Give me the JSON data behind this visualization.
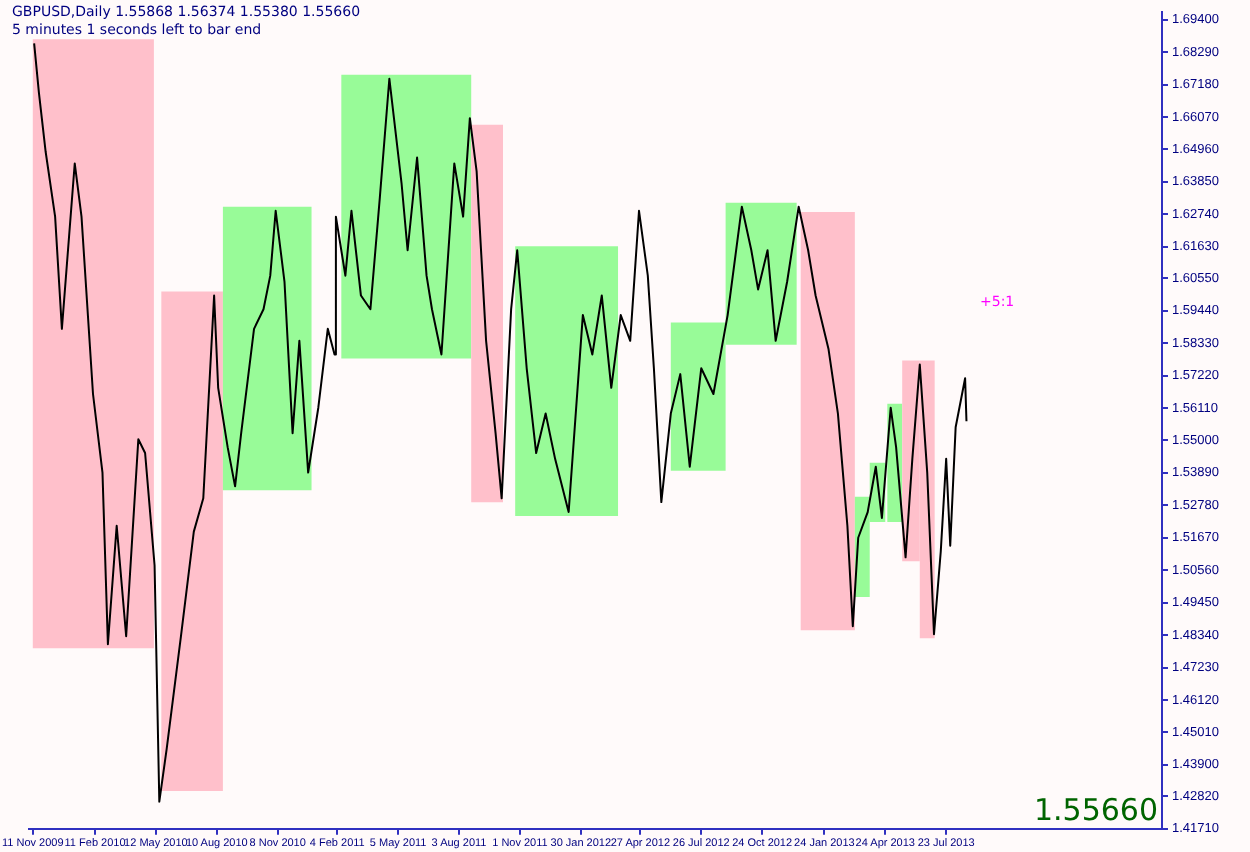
{
  "chart_data": {
    "type": "line",
    "title": "GBPUSD,Daily  1.55868 1.56374 1.55380 1.55660",
    "subtitle": "5 minutes 1 seconds left to bar end",
    "x": [
      "2009-11-13",
      "2009-11-20",
      "2009-11-30",
      "2009-12-14",
      "2009-12-24",
      "2010-01-12",
      "2010-01-22",
      "2010-02-08",
      "2010-02-22",
      "2010-03-02",
      "2010-03-15",
      "2010-03-29",
      "2010-04-16",
      "2010-04-26",
      "2010-05-10",
      "2010-05-17",
      "2010-05-28",
      "2010-06-18",
      "2010-07-07",
      "2010-07-21",
      "2010-08-06",
      "2010-08-12",
      "2010-08-26",
      "2010-09-06",
      "2010-09-15",
      "2010-10-04",
      "2010-10-18",
      "2010-10-28",
      "2010-11-05",
      "2010-11-18",
      "2010-11-30",
      "2010-12-10",
      "2010-12-23",
      "2011-01-07",
      "2011-01-21",
      "2011-01-31",
      "2011-02-02",
      "2011-02-16",
      "2011-02-25",
      "2011-03-11",
      "2011-03-25",
      "2011-04-08",
      "2011-04-22",
      "2011-05-10",
      "2011-05-19",
      "2011-06-02",
      "2011-06-16",
      "2011-06-24",
      "2011-07-08",
      "2011-07-27",
      "2011-08-09",
      "2011-08-19",
      "2011-08-29",
      "2011-09-12",
      "2011-09-26",
      "2011-10-05",
      "2011-10-19",
      "2011-10-28",
      "2011-11-11",
      "2011-11-25",
      "2011-12-09",
      "2011-12-23",
      "2012-01-12",
      "2012-02-02",
      "2012-02-16",
      "2012-03-01",
      "2012-03-15",
      "2012-03-29",
      "2012-04-12",
      "2012-04-25",
      "2012-05-08",
      "2012-05-17",
      "2012-05-28",
      "2012-06-11",
      "2012-06-25",
      "2012-07-09",
      "2012-07-26",
      "2012-08-13",
      "2012-09-03",
      "2012-09-24",
      "2012-10-08",
      "2012-10-18",
      "2012-11-01",
      "2012-11-13",
      "2012-11-30",
      "2012-12-17",
      "2012-12-31",
      "2013-01-11",
      "2013-01-30",
      "2013-02-13",
      "2013-02-27",
      "2013-03-07",
      "2013-03-15",
      "2013-03-29",
      "2013-04-10",
      "2013-04-19",
      "2013-05-02",
      "2013-05-10",
      "2013-05-24",
      "2013-06-03",
      "2013-06-14",
      "2013-06-25",
      "2013-07-05",
      "2013-07-15",
      "2013-07-23",
      "2013-07-29",
      "2013-08-06",
      "2013-08-20",
      "2013-08-22"
    ],
    "series": [
      {
        "color": "#000000",
        "values": [
          1.6859,
          1.6691,
          1.6488,
          1.6266,
          1.5882,
          1.6448,
          1.6266,
          1.5659,
          1.539,
          1.4803,
          1.5208,
          1.483,
          1.5504,
          1.5457,
          1.5073,
          1.4264,
          1.4446,
          1.483,
          1.5188,
          1.5302,
          1.5996,
          1.568,
          1.5477,
          1.5343,
          1.5525,
          1.5882,
          1.5949,
          1.6064,
          1.6286,
          1.6044,
          1.5525,
          1.5841,
          1.539,
          1.5612,
          1.5882,
          1.5794,
          1.6266,
          1.6064,
          1.6286,
          1.5996,
          1.5949,
          1.6333,
          1.6738,
          1.6381,
          1.6151,
          1.6468,
          1.6064,
          1.5949,
          1.5794,
          1.6448,
          1.6266,
          1.6603,
          1.6421,
          1.5841,
          1.5525,
          1.5302,
          1.5949,
          1.6151,
          1.5747,
          1.5457,
          1.5592,
          1.5437,
          1.5255,
          1.5929,
          1.5794,
          1.5996,
          1.568,
          1.5929,
          1.5841,
          1.6286,
          1.6064,
          1.5747,
          1.5289,
          1.5592,
          1.5727,
          1.541,
          1.5747,
          1.5659,
          1.5929,
          1.63,
          1.6151,
          1.6017,
          1.6151,
          1.5841,
          1.6044,
          1.63,
          1.6151,
          1.5996,
          1.5814,
          1.5592,
          1.5208,
          1.4864,
          1.5167,
          1.5255,
          1.541,
          1.5235,
          1.5612,
          1.5477,
          1.51,
          1.5437,
          1.576,
          1.539,
          1.4837,
          1.512,
          1.5437,
          1.514,
          1.5545,
          1.5713,
          1.5566
        ]
      }
    ],
    "bands": [
      {
        "axis": "x",
        "from": "2009-11-11",
        "to": "2010-05-09",
        "color": "#ffc0cb"
      },
      {
        "axis": "x",
        "from": "2010-05-20",
        "to": "2010-08-19",
        "color": "#ffc0cb"
      },
      {
        "axis": "x",
        "from": "2010-08-19",
        "to": "2010-12-28",
        "color": "#98fb98"
      },
      {
        "axis": "x",
        "from": "2011-02-10",
        "to": "2011-08-21",
        "color": "#98fb98"
      },
      {
        "axis": "x",
        "from": "2011-08-21",
        "to": "2011-10-07",
        "color": "#ffc0cb"
      },
      {
        "axis": "x",
        "from": "2011-10-25",
        "to": "2012-03-25",
        "color": "#98fb98"
      },
      {
        "axis": "x",
        "from": "2012-06-11",
        "to": "2012-08-31",
        "color": "#98fb98"
      },
      {
        "axis": "x",
        "from": "2012-08-31",
        "to": "2012-12-14",
        "color": "#98fb98"
      },
      {
        "axis": "x",
        "from": "2012-12-20",
        "to": "2013-03-10",
        "color": "#ffc0cb"
      },
      {
        "axis": "x",
        "from": "2013-03-10",
        "to": "2013-04-01",
        "color": "#98fb98"
      },
      {
        "axis": "x",
        "from": "2013-04-01",
        "to": "2013-04-24",
        "color": "#98fb98"
      },
      {
        "axis": "x",
        "from": "2013-04-27",
        "to": "2013-05-19",
        "color": "#98fb98"
      },
      {
        "axis": "x",
        "from": "2013-05-19",
        "to": "2013-06-14",
        "color": "#ffc0cb"
      },
      {
        "axis": "x",
        "from": "2013-06-14",
        "to": "2013-07-06",
        "color": "#ffc0cb"
      }
    ],
    "annotations": [
      "+5:1",
      "1.55660"
    ],
    "xlim": [
      "2009-11-05",
      "2014-06-07"
    ],
    "xticks": [
      {
        "value": "2009-11-11",
        "label": "11 Nov 2009"
      },
      {
        "value": "2010-02-11",
        "label": "11 Feb 2010"
      },
      {
        "value": "2010-05-12",
        "label": "12 May 2010"
      },
      {
        "value": "2010-08-10",
        "label": "10 Aug 2010"
      },
      {
        "value": "2010-11-08",
        "label": "8 Nov 2010"
      },
      {
        "value": "2011-02-04",
        "label": "4 Feb 2011"
      },
      {
        "value": "2011-05-05",
        "label": "5 May 2011"
      },
      {
        "value": "2011-08-03",
        "label": "3 Aug 2011"
      },
      {
        "value": "2011-11-01",
        "label": "1 Nov 2011"
      },
      {
        "value": "2012-01-30",
        "label": "30 Jan 2012"
      },
      {
        "value": "2012-04-27",
        "label": "27 Apr 2012"
      },
      {
        "value": "2012-07-26",
        "label": "26 Jul 2012"
      },
      {
        "value": "2012-10-24",
        "label": "24 Oct 2012"
      },
      {
        "value": "2013-01-24",
        "label": "24 Jan 2013"
      },
      {
        "value": "2013-04-24",
        "label": "24 Apr 2013"
      },
      {
        "value": "2013-07-23",
        "label": "23 Jul 2013"
      }
    ],
    "ylim": [
      1.4171,
      1.6967
    ],
    "yticks": [
      {
        "value": 1.694,
        "label": "1.69400"
      },
      {
        "value": 1.6829,
        "label": "1.68290"
      },
      {
        "value": 1.6718,
        "label": "1.67180"
      },
      {
        "value": 1.6607,
        "label": "1.66070"
      },
      {
        "value": 1.6496,
        "label": "1.64960"
      },
      {
        "value": 1.6385,
        "label": "1.63850"
      },
      {
        "value": 1.6274,
        "label": "1.62740"
      },
      {
        "value": 1.6163,
        "label": "1.61630"
      },
      {
        "value": 1.6055,
        "label": "1.60550"
      },
      {
        "value": 1.5944,
        "label": "1.59440"
      },
      {
        "value": 1.5833,
        "label": "1.58330"
      },
      {
        "value": 1.5722,
        "label": "1.57220"
      },
      {
        "value": 1.5611,
        "label": "1.56110"
      },
      {
        "value": 1.55,
        "label": "1.55000"
      },
      {
        "value": 1.5389,
        "label": "1.53890"
      },
      {
        "value": 1.5278,
        "label": "1.52780"
      },
      {
        "value": 1.5167,
        "label": "1.51670"
      },
      {
        "value": 1.5056,
        "label": "1.50560"
      },
      {
        "value": 1.4945,
        "label": "1.49450"
      },
      {
        "value": 1.4834,
        "label": "1.48340"
      },
      {
        "value": 1.4723,
        "label": "1.47230"
      },
      {
        "value": 1.4612,
        "label": "1.46120"
      },
      {
        "value": 1.4501,
        "label": "1.45010"
      },
      {
        "value": 1.439,
        "label": "1.43900"
      },
      {
        "value": 1.4282,
        "label": "1.42820"
      },
      {
        "value": 1.4171,
        "label": "1.41710"
      }
    ],
    "grid": false,
    "legend": false,
    "marker": "none",
    "line_style": "solid"
  }
}
